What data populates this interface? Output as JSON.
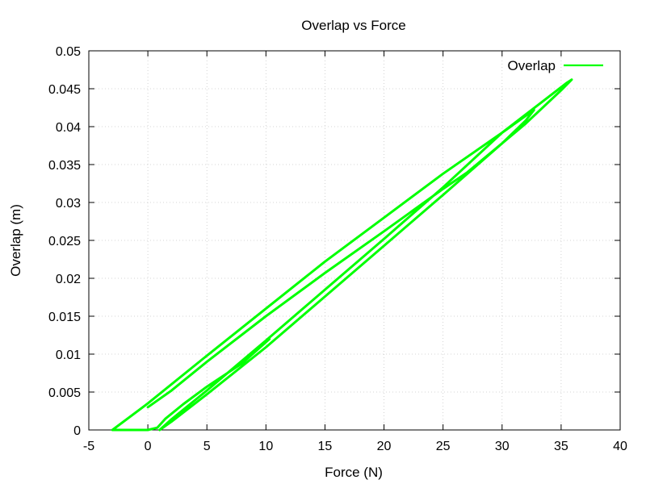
{
  "chart_data": {
    "type": "line",
    "title": "Overlap vs Force",
    "xlabel": "Force (N)",
    "ylabel": "Overlap (m)",
    "xlim": [
      -5,
      40
    ],
    "ylim": [
      0,
      0.05
    ],
    "xticks": [
      -5,
      0,
      5,
      10,
      15,
      20,
      25,
      30,
      35,
      40
    ],
    "xtick_labels": [
      "-5",
      "0",
      "5",
      "10",
      "15",
      "20",
      "25",
      "30",
      "35",
      "40"
    ],
    "yticks": [
      0,
      0.005,
      0.01,
      0.015,
      0.02,
      0.025,
      0.03,
      0.035,
      0.04,
      0.045,
      0.05
    ],
    "ytick_labels": [
      "0",
      "0.005",
      "0.01",
      "0.015",
      "0.02",
      "0.025",
      "0.03",
      "0.035",
      "0.04",
      "0.045",
      "0.05"
    ],
    "grid": true,
    "legend_position": "top-right",
    "series": [
      {
        "name": "Overlap",
        "color": "#00ff00",
        "points": [
          [
            10.3,
            0.012
          ],
          [
            8.0,
            0.0088
          ],
          [
            5.0,
            0.0057
          ],
          [
            3.0,
            0.0034
          ],
          [
            1.5,
            0.0015
          ],
          [
            0.8,
            0.0003
          ],
          [
            0.0,
            0.0
          ],
          [
            -1.0,
            0.0
          ],
          [
            -3.0,
            0.0
          ],
          [
            0.0,
            0.0035
          ],
          [
            5.0,
            0.0098
          ],
          [
            10.0,
            0.016
          ],
          [
            15.0,
            0.0222
          ],
          [
            20.0,
            0.028
          ],
          [
            25.0,
            0.0338
          ],
          [
            30.0,
            0.0392
          ],
          [
            32.7,
            0.0422
          ],
          [
            32.0,
            0.0408
          ],
          [
            30.0,
            0.0378
          ],
          [
            25.0,
            0.031
          ],
          [
            20.0,
            0.0243
          ],
          [
            15.0,
            0.0176
          ],
          [
            10.0,
            0.0109
          ],
          [
            5.0,
            0.0047
          ],
          [
            2.0,
            0.0011
          ],
          [
            1.0,
            0.0
          ],
          [
            2.0,
            0.0014
          ],
          [
            5.0,
            0.0052
          ],
          [
            10.0,
            0.0118
          ],
          [
            15.0,
            0.0185
          ],
          [
            20.0,
            0.0252
          ],
          [
            25.0,
            0.032
          ],
          [
            30.0,
            0.0392
          ],
          [
            33.0,
            0.0428
          ],
          [
            35.5,
            0.0458
          ],
          [
            35.9,
            0.0462
          ],
          [
            35.0,
            0.0448
          ],
          [
            32.0,
            0.0404
          ],
          [
            30.0,
            0.0378
          ],
          [
            27.0,
            0.0339
          ],
          [
            25.0,
            0.0318
          ],
          [
            20.0,
            0.0262
          ],
          [
            15.0,
            0.0207
          ],
          [
            10.0,
            0.015
          ],
          [
            5.0,
            0.009
          ],
          [
            2.0,
            0.0052
          ],
          [
            0.0,
            0.003
          ]
        ]
      }
    ]
  }
}
